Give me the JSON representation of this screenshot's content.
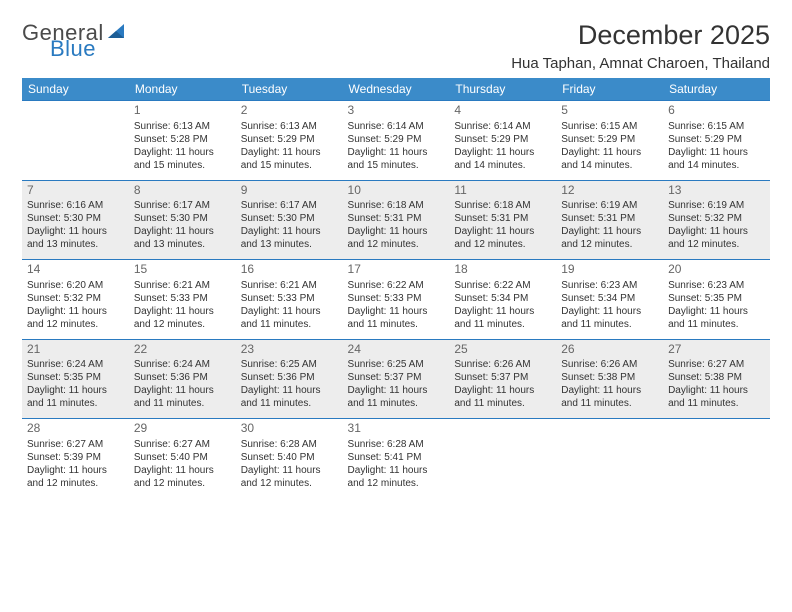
{
  "logo": {
    "general": "General",
    "blue": "Blue"
  },
  "title": "December 2025",
  "location": "Hua Taphan, Amnat Charoen, Thailand",
  "columns": [
    "Sunday",
    "Monday",
    "Tuesday",
    "Wednesday",
    "Thursday",
    "Friday",
    "Saturday"
  ],
  "colors": {
    "header_bg": "#3b8bc9",
    "header_text": "#ffffff",
    "rule": "#2a7ac0",
    "shade": "#ededed",
    "text": "#333333",
    "daynum": "#666666",
    "logo_blue": "#2a7ac0",
    "logo_gray": "#4a4a4a",
    "page_bg": "#ffffff"
  },
  "weeks": [
    {
      "shade": false,
      "cells": [
        null,
        {
          "num": "1",
          "sunrise": "Sunrise: 6:13 AM",
          "sunset": "Sunset: 5:28 PM",
          "day1": "Daylight: 11 hours",
          "day2": "and 15 minutes."
        },
        {
          "num": "2",
          "sunrise": "Sunrise: 6:13 AM",
          "sunset": "Sunset: 5:29 PM",
          "day1": "Daylight: 11 hours",
          "day2": "and 15 minutes."
        },
        {
          "num": "3",
          "sunrise": "Sunrise: 6:14 AM",
          "sunset": "Sunset: 5:29 PM",
          "day1": "Daylight: 11 hours",
          "day2": "and 15 minutes."
        },
        {
          "num": "4",
          "sunrise": "Sunrise: 6:14 AM",
          "sunset": "Sunset: 5:29 PM",
          "day1": "Daylight: 11 hours",
          "day2": "and 14 minutes."
        },
        {
          "num": "5",
          "sunrise": "Sunrise: 6:15 AM",
          "sunset": "Sunset: 5:29 PM",
          "day1": "Daylight: 11 hours",
          "day2": "and 14 minutes."
        },
        {
          "num": "6",
          "sunrise": "Sunrise: 6:15 AM",
          "sunset": "Sunset: 5:29 PM",
          "day1": "Daylight: 11 hours",
          "day2": "and 14 minutes."
        }
      ]
    },
    {
      "shade": true,
      "cells": [
        {
          "num": "7",
          "sunrise": "Sunrise: 6:16 AM",
          "sunset": "Sunset: 5:30 PM",
          "day1": "Daylight: 11 hours",
          "day2": "and 13 minutes."
        },
        {
          "num": "8",
          "sunrise": "Sunrise: 6:17 AM",
          "sunset": "Sunset: 5:30 PM",
          "day1": "Daylight: 11 hours",
          "day2": "and 13 minutes."
        },
        {
          "num": "9",
          "sunrise": "Sunrise: 6:17 AM",
          "sunset": "Sunset: 5:30 PM",
          "day1": "Daylight: 11 hours",
          "day2": "and 13 minutes."
        },
        {
          "num": "10",
          "sunrise": "Sunrise: 6:18 AM",
          "sunset": "Sunset: 5:31 PM",
          "day1": "Daylight: 11 hours",
          "day2": "and 12 minutes."
        },
        {
          "num": "11",
          "sunrise": "Sunrise: 6:18 AM",
          "sunset": "Sunset: 5:31 PM",
          "day1": "Daylight: 11 hours",
          "day2": "and 12 minutes."
        },
        {
          "num": "12",
          "sunrise": "Sunrise: 6:19 AM",
          "sunset": "Sunset: 5:31 PM",
          "day1": "Daylight: 11 hours",
          "day2": "and 12 minutes."
        },
        {
          "num": "13",
          "sunrise": "Sunrise: 6:19 AM",
          "sunset": "Sunset: 5:32 PM",
          "day1": "Daylight: 11 hours",
          "day2": "and 12 minutes."
        }
      ]
    },
    {
      "shade": false,
      "cells": [
        {
          "num": "14",
          "sunrise": "Sunrise: 6:20 AM",
          "sunset": "Sunset: 5:32 PM",
          "day1": "Daylight: 11 hours",
          "day2": "and 12 minutes."
        },
        {
          "num": "15",
          "sunrise": "Sunrise: 6:21 AM",
          "sunset": "Sunset: 5:33 PM",
          "day1": "Daylight: 11 hours",
          "day2": "and 12 minutes."
        },
        {
          "num": "16",
          "sunrise": "Sunrise: 6:21 AM",
          "sunset": "Sunset: 5:33 PM",
          "day1": "Daylight: 11 hours",
          "day2": "and 11 minutes."
        },
        {
          "num": "17",
          "sunrise": "Sunrise: 6:22 AM",
          "sunset": "Sunset: 5:33 PM",
          "day1": "Daylight: 11 hours",
          "day2": "and 11 minutes."
        },
        {
          "num": "18",
          "sunrise": "Sunrise: 6:22 AM",
          "sunset": "Sunset: 5:34 PM",
          "day1": "Daylight: 11 hours",
          "day2": "and 11 minutes."
        },
        {
          "num": "19",
          "sunrise": "Sunrise: 6:23 AM",
          "sunset": "Sunset: 5:34 PM",
          "day1": "Daylight: 11 hours",
          "day2": "and 11 minutes."
        },
        {
          "num": "20",
          "sunrise": "Sunrise: 6:23 AM",
          "sunset": "Sunset: 5:35 PM",
          "day1": "Daylight: 11 hours",
          "day2": "and 11 minutes."
        }
      ]
    },
    {
      "shade": true,
      "cells": [
        {
          "num": "21",
          "sunrise": "Sunrise: 6:24 AM",
          "sunset": "Sunset: 5:35 PM",
          "day1": "Daylight: 11 hours",
          "day2": "and 11 minutes."
        },
        {
          "num": "22",
          "sunrise": "Sunrise: 6:24 AM",
          "sunset": "Sunset: 5:36 PM",
          "day1": "Daylight: 11 hours",
          "day2": "and 11 minutes."
        },
        {
          "num": "23",
          "sunrise": "Sunrise: 6:25 AM",
          "sunset": "Sunset: 5:36 PM",
          "day1": "Daylight: 11 hours",
          "day2": "and 11 minutes."
        },
        {
          "num": "24",
          "sunrise": "Sunrise: 6:25 AM",
          "sunset": "Sunset: 5:37 PM",
          "day1": "Daylight: 11 hours",
          "day2": "and 11 minutes."
        },
        {
          "num": "25",
          "sunrise": "Sunrise: 6:26 AM",
          "sunset": "Sunset: 5:37 PM",
          "day1": "Daylight: 11 hours",
          "day2": "and 11 minutes."
        },
        {
          "num": "26",
          "sunrise": "Sunrise: 6:26 AM",
          "sunset": "Sunset: 5:38 PM",
          "day1": "Daylight: 11 hours",
          "day2": "and 11 minutes."
        },
        {
          "num": "27",
          "sunrise": "Sunrise: 6:27 AM",
          "sunset": "Sunset: 5:38 PM",
          "day1": "Daylight: 11 hours",
          "day2": "and 11 minutes."
        }
      ]
    },
    {
      "shade": false,
      "cells": [
        {
          "num": "28",
          "sunrise": "Sunrise: 6:27 AM",
          "sunset": "Sunset: 5:39 PM",
          "day1": "Daylight: 11 hours",
          "day2": "and 12 minutes."
        },
        {
          "num": "29",
          "sunrise": "Sunrise: 6:27 AM",
          "sunset": "Sunset: 5:40 PM",
          "day1": "Daylight: 11 hours",
          "day2": "and 12 minutes."
        },
        {
          "num": "30",
          "sunrise": "Sunrise: 6:28 AM",
          "sunset": "Sunset: 5:40 PM",
          "day1": "Daylight: 11 hours",
          "day2": "and 12 minutes."
        },
        {
          "num": "31",
          "sunrise": "Sunrise: 6:28 AM",
          "sunset": "Sunset: 5:41 PM",
          "day1": "Daylight: 11 hours",
          "day2": "and 12 minutes."
        },
        null,
        null,
        null
      ]
    }
  ]
}
